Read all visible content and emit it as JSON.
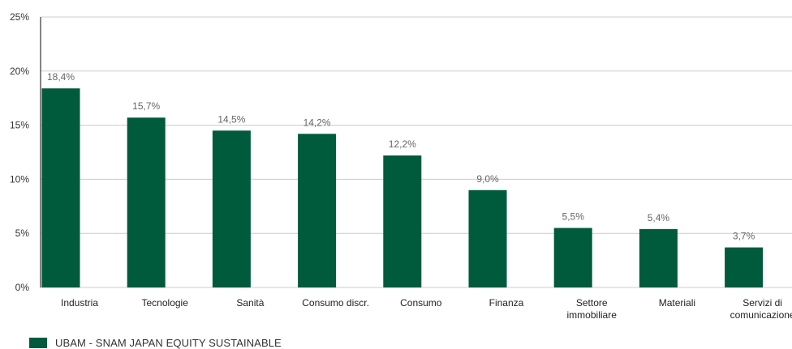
{
  "chart_data": {
    "type": "bar",
    "categories": [
      [
        "Industria"
      ],
      [
        "Tecnologie"
      ],
      [
        "Sanità"
      ],
      [
        "Consumo discr."
      ],
      [
        "Consumo"
      ],
      [
        "Finanza"
      ],
      [
        "Settore",
        "immobiliare"
      ],
      [
        "Materiali"
      ],
      [
        "Servizi di",
        "comunicazione"
      ]
    ],
    "series": [
      {
        "name": "UBAM - SNAM JAPAN EQUITY SUSTAINABLE",
        "values": [
          18.4,
          15.7,
          14.5,
          14.2,
          12.2,
          9.0,
          5.5,
          5.4,
          3.7
        ],
        "data_labels": [
          "18,4%",
          "15,7%",
          "14,5%",
          "14,2%",
          "12,2%",
          "9,0%",
          "5,5%",
          "5,4%",
          "3,7%"
        ]
      }
    ],
    "y_ticks": [
      0,
      5,
      10,
      15,
      20,
      25
    ],
    "y_tick_labels": [
      "0%",
      "5%",
      "10%",
      "15%",
      "20%",
      "25%"
    ],
    "ylim": [
      0,
      25
    ],
    "grid": true,
    "legend_position": "bottom-left",
    "bar_color": "#005a3c",
    "grid_color": "#cccccc",
    "axis_color": "#333333"
  }
}
